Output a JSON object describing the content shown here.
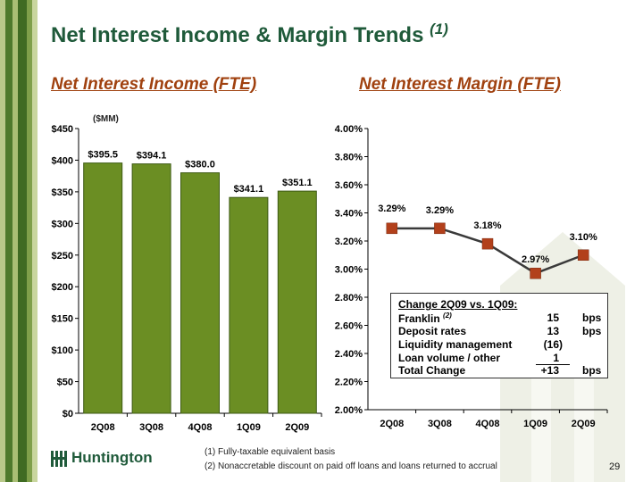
{
  "title": "Net Interest Income & Margin Trends",
  "title_sup": "(1)",
  "left_subtitle": "Net Interest Income (FTE)",
  "right_subtitle": "Net Interest Margin (FTE)",
  "colors": {
    "bar": "#6b8e23",
    "line": "#b2401b",
    "title": "#1f5a3a",
    "subtitle": "#a0410f"
  },
  "chart_data": [
    {
      "type": "bar",
      "unit_label": "($MM)",
      "categories": [
        "2Q08",
        "3Q08",
        "4Q08",
        "1Q09",
        "2Q09"
      ],
      "values": [
        395.5,
        394.1,
        380.0,
        341.1,
        351.1
      ],
      "value_labels": [
        "$395.5",
        "$394.1",
        "$380.0",
        "$341.1",
        "$351.1"
      ],
      "ylim": [
        0,
        450
      ],
      "yticks": [
        0,
        50,
        100,
        150,
        200,
        250,
        300,
        350,
        400,
        450
      ],
      "ytick_labels": [
        "$0",
        "$50",
        "$100",
        "$150",
        "$200",
        "$250",
        "$300",
        "$350",
        "$400",
        "$450"
      ]
    },
    {
      "type": "line",
      "categories": [
        "2Q08",
        "3Q08",
        "4Q08",
        "1Q09",
        "2Q09"
      ],
      "values": [
        3.29,
        3.29,
        3.18,
        2.97,
        3.1
      ],
      "value_labels": [
        "3.29%",
        "3.29%",
        "3.18%",
        "2.97%",
        "3.10%"
      ],
      "ylim": [
        2.0,
        4.0
      ],
      "yticks": [
        2.0,
        2.2,
        2.4,
        2.6,
        2.8,
        3.0,
        3.2,
        3.4,
        3.6,
        3.8,
        4.0
      ],
      "ytick_labels": [
        "2.00%",
        "2.20%",
        "2.40%",
        "2.60%",
        "2.80%",
        "3.00%",
        "3.20%",
        "3.40%",
        "3.60%",
        "3.80%",
        "4.00%"
      ]
    }
  ],
  "change_box": {
    "heading": "Change 2Q09  vs. 1Q09:",
    "rows": [
      {
        "label": "Franklin",
        "sup": "(2)",
        "value": "15",
        "unit": "bps"
      },
      {
        "label": "Deposit rates",
        "sup": "",
        "value": "13",
        "unit": "bps"
      },
      {
        "label": "Liquidity management",
        "sup": "",
        "value": "(16)",
        "unit": ""
      },
      {
        "label": "Loan volume / other",
        "sup": "",
        "value": "1",
        "unit": ""
      },
      {
        "label": "Total Change",
        "sup": "",
        "value": "+13",
        "unit": "bps"
      }
    ]
  },
  "footnotes": [
    "(1)  Fully-taxable equivalent basis",
    "(2)  Nonaccretable discount on paid off loans and loans returned to accrual"
  ],
  "logo_text": "Huntington",
  "page_number": "29"
}
